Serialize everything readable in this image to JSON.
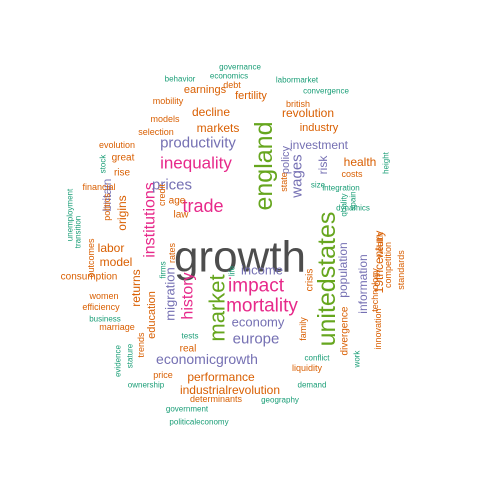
{
  "colors": {
    "gray": "#4d4d4d",
    "green": "#66a61e",
    "magenta": "#e7298a",
    "purple": "#7570b3",
    "orange": "#d95f02",
    "teal": "#1b9e77"
  },
  "words": [
    {
      "text": "growth",
      "color": "gray"
    },
    {
      "text": "unitedstates",
      "color": "green"
    },
    {
      "text": "england",
      "color": "green"
    },
    {
      "text": "market",
      "color": "green"
    },
    {
      "text": "impact",
      "color": "magenta"
    },
    {
      "text": "mortality",
      "color": "magenta"
    },
    {
      "text": "inequality",
      "color": "magenta"
    },
    {
      "text": "trade",
      "color": "magenta"
    },
    {
      "text": "history",
      "color": "magenta"
    },
    {
      "text": "institutions",
      "color": "magenta"
    },
    {
      "text": "productivity",
      "color": "purple"
    },
    {
      "text": "prices",
      "color": "purple"
    },
    {
      "text": "wages",
      "color": "purple"
    },
    {
      "text": "europe",
      "color": "purple"
    },
    {
      "text": "economicgrowth",
      "color": "purple"
    },
    {
      "text": "economy",
      "color": "purple"
    },
    {
      "text": "income",
      "color": "purple"
    },
    {
      "text": "migration",
      "color": "purple"
    },
    {
      "text": "investment",
      "color": "purple"
    },
    {
      "text": "risk",
      "color": "purple"
    },
    {
      "text": "population",
      "color": "purple"
    },
    {
      "text": "information",
      "color": "purple"
    },
    {
      "text": "britain",
      "color": "purple"
    },
    {
      "text": "markets",
      "color": "orange"
    },
    {
      "text": "decline",
      "color": "orange"
    },
    {
      "text": "revolution",
      "color": "orange"
    },
    {
      "text": "health",
      "color": "orange"
    },
    {
      "text": "performance",
      "color": "orange"
    },
    {
      "text": "industrialrevolution",
      "color": "orange"
    },
    {
      "text": "model",
      "color": "orange"
    },
    {
      "text": "labor",
      "color": "orange"
    },
    {
      "text": "returns",
      "color": "orange"
    },
    {
      "text": "origins",
      "color": "orange"
    },
    {
      "text": "19thcentury",
      "color": "orange"
    },
    {
      "text": "earnings",
      "color": "orange"
    },
    {
      "text": "fertility",
      "color": "orange"
    },
    {
      "text": "industry",
      "color": "orange"
    },
    {
      "text": "education",
      "color": "orange"
    },
    {
      "text": "policy",
      "color": "purple"
    },
    {
      "text": "consumption",
      "color": "orange"
    },
    {
      "text": "age",
      "color": "orange"
    },
    {
      "text": "law",
      "color": "orange"
    },
    {
      "text": "great",
      "color": "orange"
    },
    {
      "text": "rise",
      "color": "orange"
    },
    {
      "text": "divergence",
      "color": "orange"
    },
    {
      "text": "real",
      "color": "orange"
    },
    {
      "text": "crisis",
      "color": "orange"
    },
    {
      "text": "models",
      "color": "orange"
    },
    {
      "text": "selection",
      "color": "orange"
    },
    {
      "text": "evolution",
      "color": "orange"
    },
    {
      "text": "mobility",
      "color": "orange"
    },
    {
      "text": "debt",
      "color": "orange"
    },
    {
      "text": "british",
      "color": "orange"
    },
    {
      "text": "costs",
      "color": "orange"
    },
    {
      "text": "state",
      "color": "orange"
    },
    {
      "text": "family",
      "color": "orange"
    },
    {
      "text": "innovation",
      "color": "orange"
    },
    {
      "text": "technology",
      "color": "orange"
    },
    {
      "text": "wealth",
      "color": "orange"
    },
    {
      "text": "competition",
      "color": "orange"
    },
    {
      "text": "standards",
      "color": "orange"
    },
    {
      "text": "financial",
      "color": "orange"
    },
    {
      "text": "politics",
      "color": "orange"
    },
    {
      "text": "outcomes",
      "color": "orange"
    },
    {
      "text": "women",
      "color": "orange"
    },
    {
      "text": "efficiency",
      "color": "orange"
    },
    {
      "text": "marriage",
      "color": "orange"
    },
    {
      "text": "trends",
      "color": "orange"
    },
    {
      "text": "credit",
      "color": "orange"
    },
    {
      "text": "rates",
      "color": "orange"
    },
    {
      "text": "liquidity",
      "color": "orange"
    },
    {
      "text": "price",
      "color": "orange"
    },
    {
      "text": "determinants",
      "color": "orange"
    },
    {
      "text": "governance",
      "color": "teal"
    },
    {
      "text": "behavior",
      "color": "teal"
    },
    {
      "text": "economics",
      "color": "teal"
    },
    {
      "text": "labormarket",
      "color": "teal"
    },
    {
      "text": "convergence",
      "color": "teal"
    },
    {
      "text": "stock",
      "color": "teal"
    },
    {
      "text": "height",
      "color": "teal"
    },
    {
      "text": "spain",
      "color": "teal"
    },
    {
      "text": "quality",
      "color": "teal"
    },
    {
      "text": "size",
      "color": "teal"
    },
    {
      "text": "integration",
      "color": "teal"
    },
    {
      "text": "dynamics",
      "color": "teal"
    },
    {
      "text": "unemployment",
      "color": "teal"
    },
    {
      "text": "transition",
      "color": "teal"
    },
    {
      "text": "firms",
      "color": "teal"
    },
    {
      "text": "life",
      "color": "teal"
    },
    {
      "text": "business",
      "color": "teal"
    },
    {
      "text": "evidence",
      "color": "teal"
    },
    {
      "text": "stature",
      "color": "teal"
    },
    {
      "text": "tests",
      "color": "teal"
    },
    {
      "text": "conflict",
      "color": "teal"
    },
    {
      "text": "work",
      "color": "teal"
    },
    {
      "text": "ownership",
      "color": "teal"
    },
    {
      "text": "demand",
      "color": "teal"
    },
    {
      "text": "geography",
      "color": "teal"
    },
    {
      "text": "government",
      "color": "teal"
    },
    {
      "text": "politicaleconomy",
      "color": "teal"
    }
  ]
}
